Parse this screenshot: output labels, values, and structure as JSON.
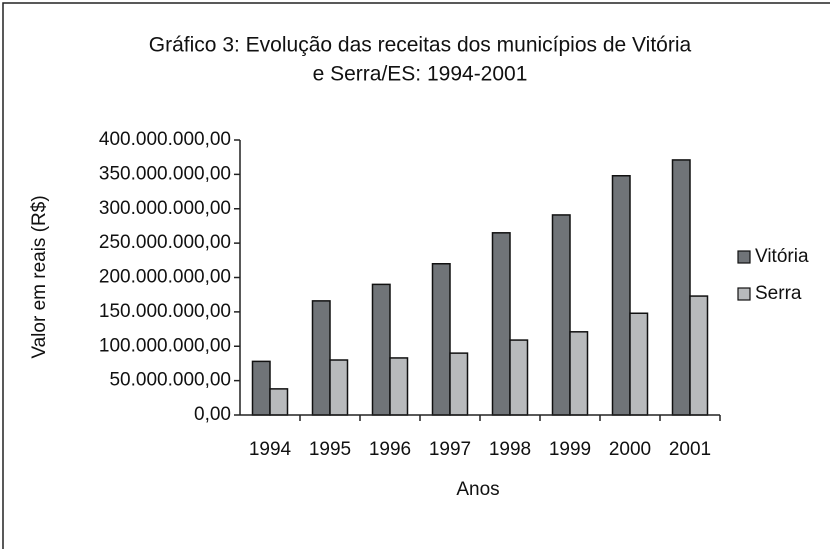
{
  "chart_data": {
    "type": "bar",
    "title": [
      "Gráfico 3: Evolução das receitas dos municípios de Vitória",
      "e Serra/ES: 1994-2001"
    ],
    "x_label": "Anos",
    "y_label": "Valor em reais (R$)",
    "categories": [
      "1994",
      "1995",
      "1996",
      "1997",
      "1998",
      "1999",
      "2000",
      "2001"
    ],
    "series": [
      {
        "name": "Vitória",
        "color": "#707478",
        "values": [
          78000000,
          166000000,
          190000000,
          220000000,
          265000000,
          291000000,
          348000000,
          371000000
        ]
      },
      {
        "name": "Serra",
        "color": "#b8babc",
        "values": [
          38000000,
          80000000,
          83000000,
          90000000,
          109000000,
          121000000,
          148000000,
          173000000
        ]
      }
    ],
    "ylim": [
      0,
      400000000
    ],
    "yticks": [
      {
        "value": 0,
        "label": "0,00"
      },
      {
        "value": 50000000,
        "label": "50.000.000,00"
      },
      {
        "value": 100000000,
        "label": "100.000.000,00"
      },
      {
        "value": 150000000,
        "label": "150.000.000,00"
      },
      {
        "value": 200000000,
        "label": "200.000.000,00"
      },
      {
        "value": 250000000,
        "label": "250.000.000,00"
      },
      {
        "value": 300000000,
        "label": "300.000.000,00"
      },
      {
        "value": 350000000,
        "label": "350.000.000,00"
      },
      {
        "value": 400000000,
        "label": "400.000.000,00"
      }
    ],
    "grid": false,
    "legend": "right"
  }
}
